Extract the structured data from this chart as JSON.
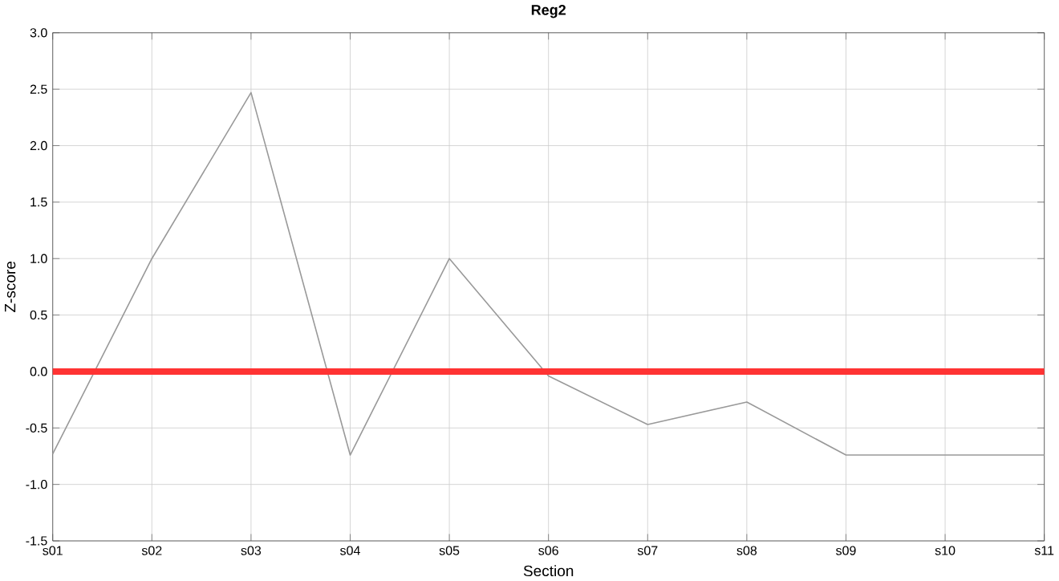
{
  "chart_data": {
    "type": "line",
    "title": "Reg2",
    "xlabel": "Section",
    "ylabel": "Z-score",
    "categories": [
      "s01",
      "s02",
      "s03",
      "s04",
      "s05",
      "s06",
      "s07",
      "s08",
      "s09",
      "s10",
      "s11"
    ],
    "series": [
      {
        "color": "#999999",
        "values": [
          -0.73,
          1.0,
          2.47,
          -0.74,
          1.0,
          -0.04,
          -0.47,
          -0.27,
          -0.74,
          -0.74,
          -0.74
        ]
      }
    ],
    "ylim": [
      -1.5,
      3.0
    ],
    "yticks": [
      {
        "value": -1.5,
        "label": "-1.5"
      },
      {
        "value": -1.0,
        "label": "-1.0"
      },
      {
        "value": -0.5,
        "label": "-0.5"
      },
      {
        "value": 0.0,
        "label": "0.0"
      },
      {
        "value": 0.5,
        "label": "0.5"
      },
      {
        "value": 1.0,
        "label": "1.0"
      },
      {
        "value": 1.5,
        "label": "1.5"
      },
      {
        "value": 2.0,
        "label": "2.0"
      },
      {
        "value": 2.5,
        "label": "2.5"
      },
      {
        "value": 3.0,
        "label": "3.0"
      }
    ],
    "ref_lines": [
      {
        "axis": "y",
        "value": 0,
        "color": "#ff3333"
      }
    ],
    "grid": true,
    "marker": "none",
    "line_style": "solid"
  }
}
